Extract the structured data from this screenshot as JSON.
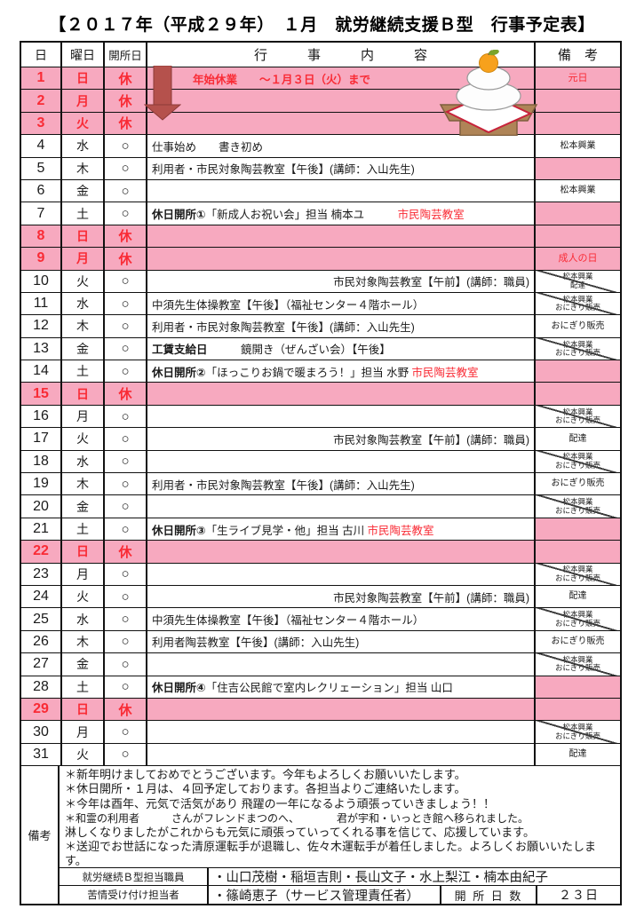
{
  "page": {
    "title": "【２０１７年（平成２９年）　１月　就労継続支援Ｂ型　行事予定表】"
  },
  "colors": {
    "pink": "#F7A9BF",
    "red": "#F92B35",
    "arrow": "#B5514C",
    "line": "#111111"
  },
  "table": {
    "headers": {
      "day": "日",
      "weekday": "曜日",
      "open": "開所日",
      "content": "行　　　事　　　内　　　容",
      "remark": "備　考"
    },
    "rows": [
      {
        "day": "1",
        "weekday": "日",
        "open": "休",
        "holiday": true,
        "segments": [
          {
            "text": "年始休業　　～１月３日（火）まで",
            "red": true,
            "bold": true,
            "indent": true
          }
        ],
        "remark": {
          "lines": [
            "元日"
          ],
          "red": true,
          "pink": true
        }
      },
      {
        "day": "2",
        "weekday": "月",
        "open": "休",
        "holiday": true,
        "segments": [],
        "remark": {
          "pink": true
        }
      },
      {
        "day": "3",
        "weekday": "火",
        "open": "休",
        "holiday": true,
        "segments": [],
        "remark": {
          "pink": true
        }
      },
      {
        "day": "4",
        "weekday": "水",
        "open": "○",
        "segments": [
          {
            "text": "仕事始め　　書き初め"
          }
        ],
        "remark": {
          "lines": [
            "松本興業"
          ]
        }
      },
      {
        "day": "5",
        "weekday": "木",
        "open": "○",
        "segments": [
          {
            "text": "利用者・市民対象陶芸教室【午後】(講師：入山先生)"
          }
        ],
        "remark": {
          "pink": true
        }
      },
      {
        "day": "6",
        "weekday": "金",
        "open": "○",
        "segments": [],
        "remark": {
          "lines": [
            "松本興業"
          ]
        }
      },
      {
        "day": "7",
        "weekday": "土",
        "open": "○",
        "segments": [
          {
            "text": "休日開所①",
            "bold": true
          },
          {
            "text": "「新成人お祝い会」担当 楠本ユ　　　"
          },
          {
            "text": "市民陶芸教室",
            "red": true
          }
        ],
        "remark": {
          "pink": true
        }
      },
      {
        "day": "8",
        "weekday": "日",
        "open": "休",
        "holiday": true,
        "segments": [],
        "remark": {
          "pink": true
        }
      },
      {
        "day": "9",
        "weekday": "月",
        "open": "休",
        "holiday": true,
        "segments": [],
        "remark": {
          "lines": [
            "成人の日"
          ],
          "red": true,
          "pink": true
        }
      },
      {
        "day": "10",
        "weekday": "火",
        "open": "○",
        "align": "right",
        "segments": [
          {
            "text": "市民対象陶芸教室【午前】(講師：職員)"
          }
        ],
        "remark": {
          "lines": [
            "松本興業",
            "配達"
          ],
          "crossed": true
        }
      },
      {
        "day": "11",
        "weekday": "水",
        "open": "○",
        "segments": [
          {
            "text": "中須先生体操教室【午後】（福祉センター４階ホール）"
          }
        ],
        "remark": {
          "lines": [
            "松本興業",
            "おにぎり販売"
          ],
          "crossed": true
        }
      },
      {
        "day": "12",
        "weekday": "木",
        "open": "○",
        "segments": [
          {
            "text": "利用者・市民対象陶芸教室【午後】(講師：入山先生)"
          }
        ],
        "remark": {
          "lines": [
            "おにぎり販売"
          ]
        }
      },
      {
        "day": "13",
        "weekday": "金",
        "open": "○",
        "segments": [
          {
            "text": "工賃支給日",
            "bold": true
          },
          {
            "text": "　　　鏡開き（ぜんざい会）【午後】"
          }
        ],
        "remark": {
          "lines": [
            "松本興業",
            "おにぎり販売"
          ],
          "crossed": true
        }
      },
      {
        "day": "14",
        "weekday": "土",
        "open": "○",
        "segments": [
          {
            "text": "休日開所②",
            "bold": true
          },
          {
            "text": "「ほっこりお鍋で暖まろう！」担当 水野 "
          },
          {
            "text": "市民陶芸教室",
            "red": true
          }
        ],
        "remark": {
          "pink": true
        }
      },
      {
        "day": "15",
        "weekday": "日",
        "open": "休",
        "holiday": true,
        "segments": [],
        "remark": {
          "pink": true
        }
      },
      {
        "day": "16",
        "weekday": "月",
        "open": "○",
        "segments": [],
        "remark": {
          "lines": [
            "松本興業",
            "おにぎり販売"
          ],
          "crossed": true
        }
      },
      {
        "day": "17",
        "weekday": "火",
        "open": "○",
        "align": "right",
        "segments": [
          {
            "text": "市民対象陶芸教室【午前】(講師：職員)"
          }
        ],
        "remark": {
          "lines": [
            "配達"
          ]
        }
      },
      {
        "day": "18",
        "weekday": "水",
        "open": "○",
        "segments": [],
        "remark": {
          "lines": [
            "松本興業",
            "おにぎり販売"
          ],
          "crossed": true
        }
      },
      {
        "day": "19",
        "weekday": "木",
        "open": "○",
        "segments": [
          {
            "text": "利用者・市民対象陶芸教室【午後】(講師：入山先生)"
          }
        ],
        "remark": {
          "lines": [
            "おにぎり販売"
          ]
        }
      },
      {
        "day": "20",
        "weekday": "金",
        "open": "○",
        "segments": [],
        "remark": {
          "lines": [
            "松本興業",
            "おにぎり販売"
          ],
          "crossed": true
        }
      },
      {
        "day": "21",
        "weekday": "土",
        "open": "○",
        "segments": [
          {
            "text": "休日開所③",
            "bold": true
          },
          {
            "text": "「生ライブ見学・他」担当 古川 "
          },
          {
            "text": "市民陶芸教室",
            "red": true
          }
        ],
        "remark": {
          "pink": true
        }
      },
      {
        "day": "22",
        "weekday": "日",
        "open": "休",
        "holiday": true,
        "segments": [],
        "remark": {
          "pink": true
        }
      },
      {
        "day": "23",
        "weekday": "月",
        "open": "○",
        "segments": [],
        "remark": {
          "lines": [
            "松本興業",
            "おにぎり販売"
          ],
          "crossed": true
        }
      },
      {
        "day": "24",
        "weekday": "火",
        "open": "○",
        "align": "right",
        "segments": [
          {
            "text": "市民対象陶芸教室【午前】(講師：職員)"
          }
        ],
        "remark": {
          "lines": [
            "配達"
          ]
        }
      },
      {
        "day": "25",
        "weekday": "水",
        "open": "○",
        "segments": [
          {
            "text": "中須先生体操教室【午後】（福祉センター４階ホール）"
          }
        ],
        "remark": {
          "lines": [
            "松本興業",
            "おにぎり販売"
          ],
          "crossed": true
        }
      },
      {
        "day": "26",
        "weekday": "木",
        "open": "○",
        "segments": [
          {
            "text": "利用者陶芸教室【午後】(講師：入山先生)"
          }
        ],
        "remark": {
          "lines": [
            "おにぎり販売"
          ]
        }
      },
      {
        "day": "27",
        "weekday": "金",
        "open": "○",
        "segments": [],
        "remark": {
          "lines": [
            "松本興業",
            "おにぎり販売"
          ],
          "crossed": true
        }
      },
      {
        "day": "28",
        "weekday": "土",
        "open": "○",
        "segments": [
          {
            "text": "休日開所④",
            "bold": true
          },
          {
            "text": "「住吉公民館で室内レクリェーション」担当 山口"
          }
        ],
        "remark": {
          "pink": true
        }
      },
      {
        "day": "29",
        "weekday": "日",
        "open": "休",
        "holiday": true,
        "segments": [],
        "remark": {
          "pink": true
        }
      },
      {
        "day": "30",
        "weekday": "月",
        "open": "○",
        "segments": [],
        "remark": {
          "lines": [
            "松本興業",
            "おにぎり販売"
          ],
          "crossed": true
        }
      },
      {
        "day": "31",
        "weekday": "火",
        "open": "○",
        "segments": [],
        "remark": {
          "lines": [
            "配達"
          ]
        }
      }
    ]
  },
  "notes": {
    "label": "備考",
    "lines": [
      {
        "t": "＊新年明けましておめでとうございます。今年もよろしくお願いいたします。"
      },
      {
        "t": "＊休日開所・１月は、４回予定しております。各担当よりご連絡いたします。"
      },
      {
        "t": "＊今年は酉年、元気で活気があり 飛躍の一年になるよう頑張っていきましょう！！"
      },
      {
        "t": "＊和霊の利用者　　　さんがフレンドまつのへ、　　　　君が宇和・いっとき館へ移られました。",
        "small": true
      },
      {
        "t": "淋しくなりましたがこれからも元気に頑張っていってくれる事を信じて、応援しています。"
      },
      {
        "t": "＊送迎でお世話になった清原運転手が退職し、佐々木運転手が着任しました。よろしくお願いいたします。"
      }
    ]
  },
  "footer": {
    "staff_label": "就労継続Ｂ型担当職員",
    "staff_value": "・山口茂樹・稲垣吉則・長山文子・水上梨江・楠本由紀子",
    "complaint_label": "苦情受け付け担当者",
    "complaint_value": "・篠崎恵子（サービス管理責任者）",
    "open_days_label": "開 所 日 数",
    "open_days_value": "２３日"
  },
  "banner": {
    "text": "年始休業　　～１月３日（火）まで"
  }
}
